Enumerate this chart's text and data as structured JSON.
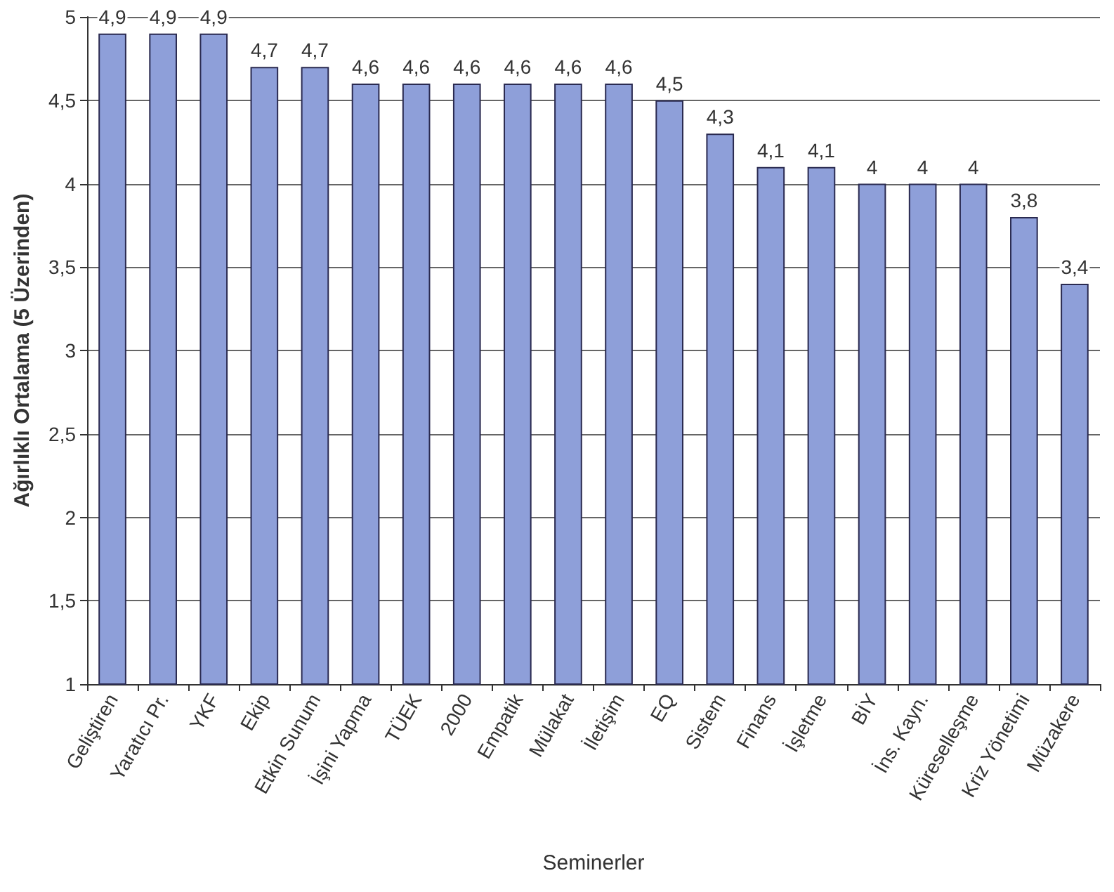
{
  "chart_data": {
    "type": "bar",
    "xlabel": "Seminerler",
    "ylabel": "Ağırlıklı Ortalama (5 Üzerinden)",
    "categories": [
      "Geliştiren",
      "Yaratıcı Pr.",
      "YKF",
      "Ekip",
      "Etkin Sunum",
      "İşini Yapma",
      "TÜEK",
      "2000",
      "Empatik",
      "Mülakat",
      "İletişim",
      "EQ",
      "Sistem",
      "Finans",
      "İşletme",
      "BİY",
      "İns. Kayn.",
      "Küreselleşme",
      "Kriz Yönetimi",
      "Müzakere"
    ],
    "values": [
      4.9,
      4.9,
      4.9,
      4.7,
      4.7,
      4.6,
      4.6,
      4.6,
      4.6,
      4.6,
      4.6,
      4.5,
      4.3,
      4.1,
      4.1,
      4,
      4,
      4,
      3.8,
      3.4
    ],
    "value_labels": [
      "4,9",
      "4,9",
      "4,9",
      "4,7",
      "4,7",
      "4,6",
      "4,6",
      "4,6",
      "4,6",
      "4,6",
      "4,6",
      "4,5",
      "4,3",
      "4,1",
      "4,1",
      "4",
      "4",
      "4",
      "3,8",
      "3,4"
    ],
    "color": "#8e9fd9",
    "ylim": [
      1,
      5
    ],
    "yticks": [
      1,
      {
        "value": 1.5,
        "label": "1,5"
      },
      2,
      {
        "value": 2.5,
        "label": "2,5"
      },
      3,
      {
        "value": 3.5,
        "label": "3,5"
      },
      4,
      {
        "value": 4.5,
        "label": "4,5"
      },
      5
    ],
    "grid": "y"
  }
}
